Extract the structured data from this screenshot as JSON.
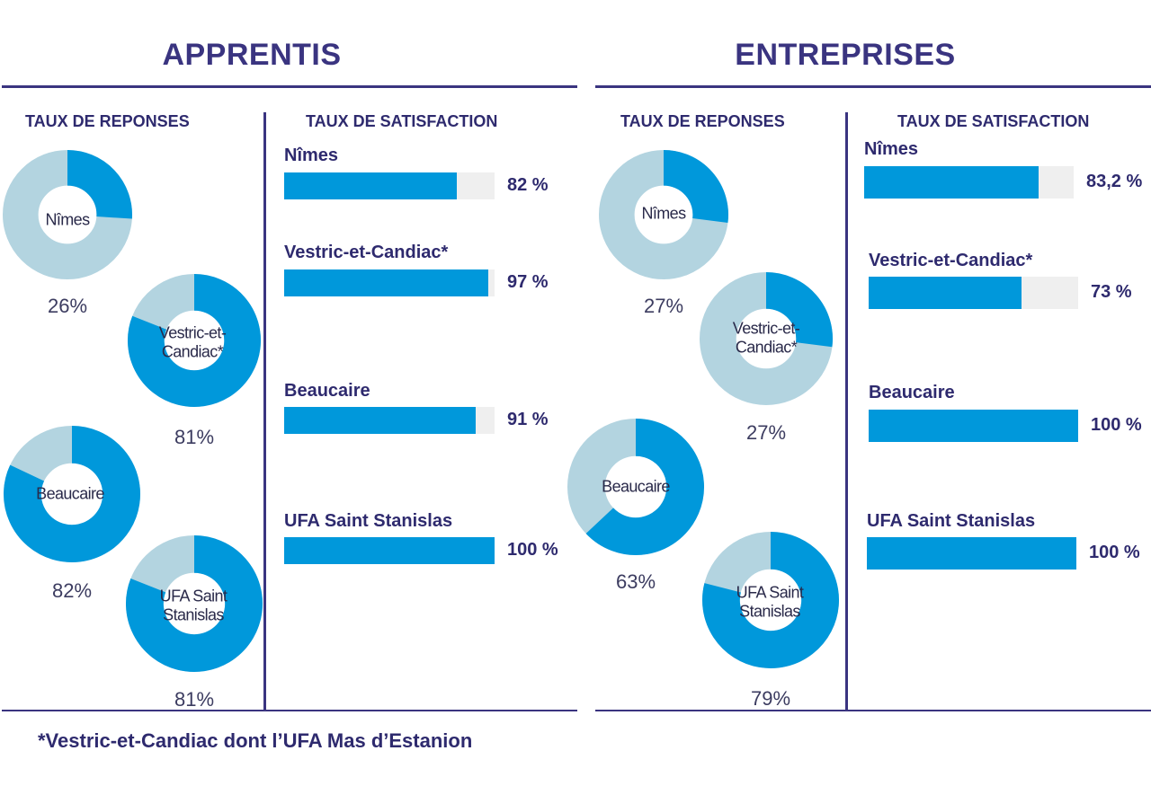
{
  "titles": {
    "apprentis": "APPRENTIS",
    "entreprises": "ENTREPRISES",
    "taux_reponses": "TAUX DE REPONSES",
    "taux_satisfaction": "TAUX DE SATISFACTION"
  },
  "colors": {
    "primary": "#0098db",
    "secondary": "#b3d4e0",
    "track": "#efefef",
    "title": "#3a3480",
    "text": "#2e2a6e"
  },
  "footnote": "*Vestric-et-Candiac dont l’UFA Mas d’Estanion",
  "chart_data": [
    {
      "type": "pie",
      "title": "TAUX DE REPONSES",
      "group": "APPRENTIS",
      "categories": [
        "Nîmes",
        "Vestric-et-Candiac*",
        "Beaucaire",
        "UFA Saint Stanislas"
      ],
      "labels": [
        "Nîmes",
        "Vestric-et-\nCandiac*",
        "Beaucaire",
        "UFA Saint\nStanislas"
      ],
      "values": [
        26,
        81,
        82,
        81
      ],
      "value_labels": [
        "26%",
        "81%",
        "82%",
        "81%"
      ]
    },
    {
      "type": "bar",
      "title": "TAUX DE SATISFACTION",
      "group": "APPRENTIS",
      "categories": [
        "Nîmes",
        "Vestric-et-Candiac*",
        "Beaucaire",
        "UFA Saint Stanislas"
      ],
      "values": [
        82,
        97,
        91,
        100
      ],
      "value_labels": [
        "82 %",
        "97 %",
        "91 %",
        "100 %"
      ],
      "ylim": [
        0,
        100
      ]
    },
    {
      "type": "pie",
      "title": "TAUX DE REPONSES",
      "group": "ENTREPRISES",
      "categories": [
        "Nîmes",
        "Vestric-et-Candiac*",
        "Beaucaire",
        "UFA Saint Stanislas"
      ],
      "labels": [
        "Nîmes",
        "Vestric-et-\nCandiac*",
        "Beaucaire",
        "UFA Saint\nStanislas"
      ],
      "values": [
        27,
        27,
        63,
        79
      ],
      "value_labels": [
        "27%",
        "27%",
        "63%",
        "79%"
      ]
    },
    {
      "type": "bar",
      "title": "TAUX DE SATISFACTION",
      "group": "ENTREPRISES",
      "categories": [
        "Nîmes",
        "Vestric-et-Candiac*",
        "Beaucaire",
        "UFA Saint Stanislas"
      ],
      "values": [
        83.2,
        73,
        100,
        100
      ],
      "value_labels": [
        "83,2 %",
        "73 %",
        "100 %",
        "100 %"
      ],
      "ylim": [
        0,
        100
      ]
    }
  ]
}
